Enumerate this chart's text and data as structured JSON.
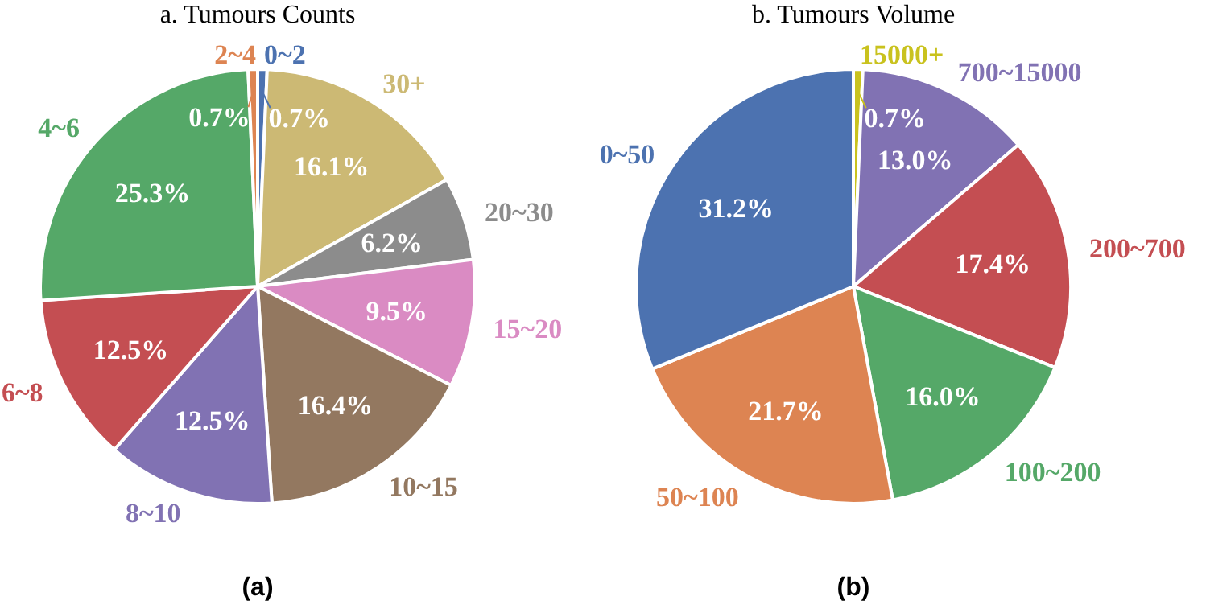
{
  "chart_data": [
    {
      "type": "pie",
      "title": "a. Tumours Counts",
      "annotations": [
        "(a)"
      ],
      "categories": [
        "0~2",
        "30+",
        "20~30",
        "15~20",
        "10~15",
        "8~10",
        "6~8",
        "4~6",
        "2~4"
      ],
      "values": [
        0.7,
        16.1,
        6.2,
        9.5,
        16.4,
        12.5,
        12.5,
        25.3,
        0.7
      ],
      "colors": [
        "#4c72b0",
        "#ccb974",
        "#8c8c8c",
        "#da8bc3",
        "#937860",
        "#8172b3",
        "#c44e52",
        "#55a868",
        "#dd8452"
      ],
      "value_labels": [
        "0.7%",
        "16.1%",
        "6.2%",
        "9.5%",
        "16.4%",
        "12.5%",
        "12.5%",
        "25.3%",
        "0.7%"
      ]
    },
    {
      "type": "pie",
      "title": "b. Tumours Volume",
      "annotations": [
        "(b)"
      ],
      "categories": [
        "15000+",
        "700~15000",
        "200~700",
        "100~200",
        "50~100",
        "0~50"
      ],
      "values": [
        0.7,
        13.0,
        17.4,
        16.0,
        21.7,
        31.2
      ],
      "colors": [
        "#c9c21e",
        "#8172b3",
        "#c44e52",
        "#55a868",
        "#dd8452",
        "#4c72b0"
      ],
      "value_labels": [
        "0.7%",
        "13.0%",
        "17.4%",
        "16.0%",
        "21.7%",
        "31.2%"
      ]
    }
  ]
}
